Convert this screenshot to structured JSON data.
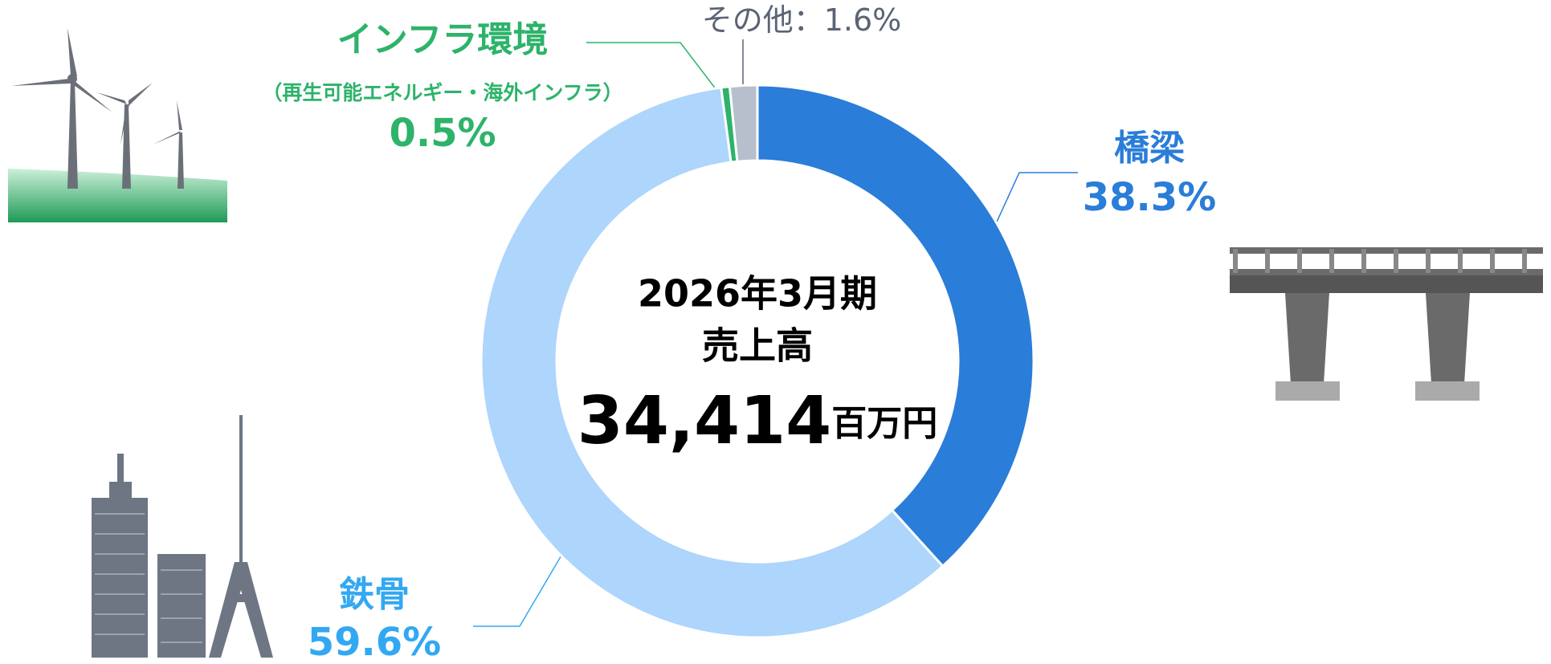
{
  "chart_data": {
    "type": "donut",
    "categories": [
      "橋梁",
      "鉄骨",
      "インフラ環境",
      "その他"
    ],
    "values": [
      38.3,
      59.6,
      0.5,
      1.6
    ],
    "value_labels": [
      "38.3%",
      "59.6%",
      "0.5%",
      "1.6%"
    ],
    "colors": [
      "#2a7dd8",
      "#aed5fb",
      "#2db36a",
      "#b7bfcc"
    ],
    "label_colors": [
      "#2a7dd8",
      "#33a8f2",
      "#2db36a",
      "#5a6475"
    ],
    "category_notes": [
      null,
      null,
      "（再生可能エネルギー・海外インフラ）",
      null
    ],
    "label_separator": "：",
    "center": {
      "period": "2026年3月期",
      "title": "売上高",
      "total": "34,414",
      "unit": "百万円"
    }
  }
}
